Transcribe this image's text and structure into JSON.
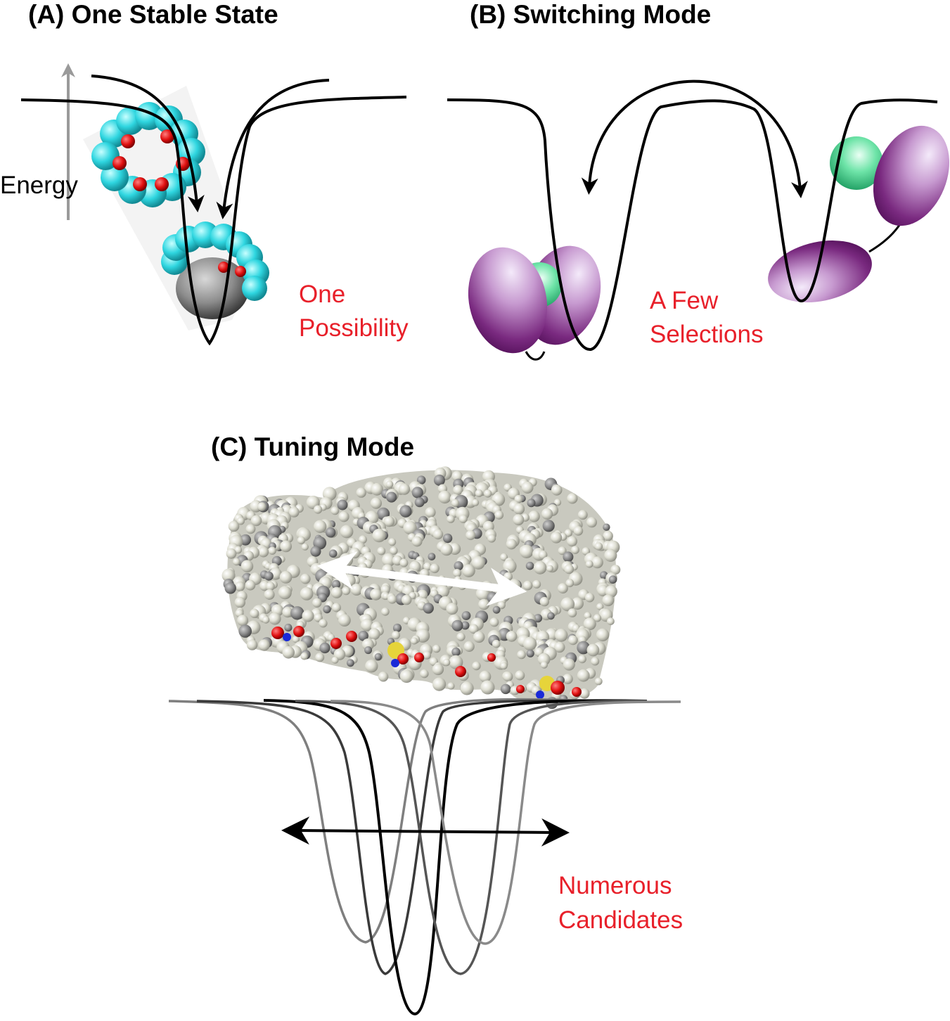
{
  "panels": {
    "a": {
      "title": "(A) One Stable State",
      "axis_label": "Energy",
      "caption_line1": "One",
      "caption_line2": "Possibility"
    },
    "b": {
      "title": "(B) Switching Mode",
      "caption_line1": "A Few",
      "caption_line2": "Selections"
    },
    "c": {
      "title": "(C) Tuning Mode",
      "caption_line1": "Numerous",
      "caption_line2": "Candidates"
    }
  },
  "colors": {
    "caption_red": "#e8202a",
    "ring_cyan": "#2fd6e0",
    "ring_red": "#e01010",
    "domain_purple": "#7a2a80",
    "ligand_green": "#3ed98e",
    "protein_gray": "#c9c9bf"
  },
  "icons": [
    "energy-axis-arrow",
    "ring-molecule",
    "purple-domain-protein",
    "space-filling-protein",
    "double-headed-arrow"
  ]
}
